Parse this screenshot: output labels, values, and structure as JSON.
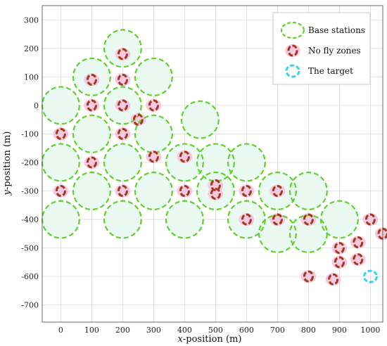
{
  "chart_data": {
    "type": "scatter",
    "xlabel_var": "x",
    "xlabel_rest": "-position (m)",
    "ylabel_var": "y",
    "ylabel_rest": "-position (m)",
    "xlim": [
      -60,
      1040
    ],
    "ylim": [
      -760,
      350
    ],
    "xticks": [
      0,
      100,
      200,
      300,
      400,
      500,
      600,
      700,
      800,
      900,
      1000
    ],
    "yticks": [
      300,
      200,
      100,
      0,
      -100,
      -200,
      -300,
      -400,
      -500,
      -600,
      -700
    ],
    "grid": true,
    "legend_position": "top-right",
    "colors": {
      "base_station": "#5fd12a",
      "coverage_fill": "#e9f8f2",
      "no_fly_zone": "#a3361e",
      "no_fly_fill": "#f5c9de",
      "target": "#33d3f0",
      "grid": "#dddddd"
    },
    "coverage_radius": 60,
    "series": [
      {
        "name": "Base stations",
        "points": [
          [
            200,
            200
          ],
          [
            100,
            100
          ],
          [
            300,
            100
          ],
          [
            0,
            0
          ],
          [
            200,
            0
          ],
          [
            100,
            -100
          ],
          [
            300,
            -100
          ],
          [
            450,
            -50
          ],
          [
            0,
            -200
          ],
          [
            200,
            -200
          ],
          [
            400,
            -200
          ],
          [
            500,
            -200
          ],
          [
            600,
            -200
          ],
          [
            100,
            -300
          ],
          [
            300,
            -300
          ],
          [
            500,
            -300
          ],
          [
            700,
            -300
          ],
          [
            800,
            -300
          ],
          [
            0,
            -400
          ],
          [
            200,
            -400
          ],
          [
            400,
            -400
          ],
          [
            600,
            -400
          ],
          [
            900,
            -400
          ],
          [
            700,
            -450
          ],
          [
            800,
            -450
          ]
        ]
      },
      {
        "name": "No fly zones",
        "points": [
          [
            200,
            180
          ],
          [
            100,
            90
          ],
          [
            200,
            90
          ],
          [
            100,
            0
          ],
          [
            200,
            0
          ],
          [
            300,
            0
          ],
          [
            0,
            -100
          ],
          [
            200,
            -100
          ],
          [
            250,
            -50
          ],
          [
            100,
            -200
          ],
          [
            300,
            -180
          ],
          [
            400,
            -180
          ],
          [
            0,
            -300
          ],
          [
            200,
            -300
          ],
          [
            400,
            -300
          ],
          [
            500,
            -280
          ],
          [
            500,
            -310
          ],
          [
            600,
            -300
          ],
          [
            700,
            -300
          ],
          [
            600,
            -400
          ],
          [
            700,
            -400
          ],
          [
            800,
            -400
          ],
          [
            1000,
            -400
          ],
          [
            1040,
            -450
          ],
          [
            900,
            -500
          ],
          [
            960,
            -480
          ],
          [
            900,
            -550
          ],
          [
            960,
            -540
          ],
          [
            800,
            -600
          ],
          [
            880,
            -610
          ]
        ]
      },
      {
        "name": "The target",
        "points": [
          [
            1000,
            -600
          ]
        ]
      }
    ]
  }
}
